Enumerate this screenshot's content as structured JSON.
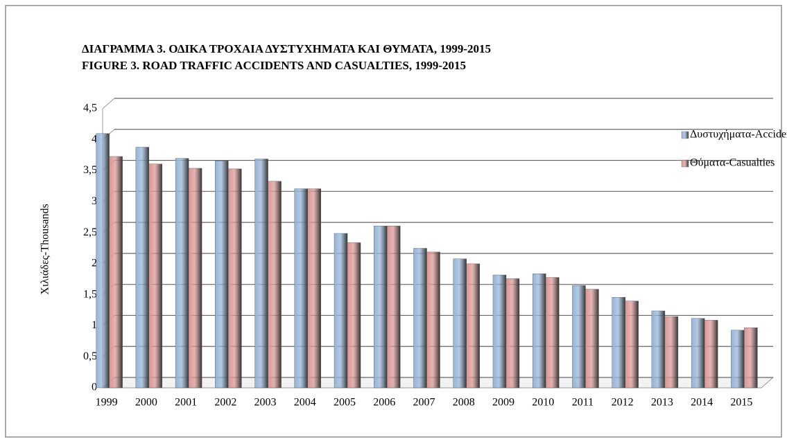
{
  "chart_data": {
    "type": "bar",
    "title": "ΔΙΑΓΡΑΜΜΑ 3. ΟΔΙΚΑ ΤΡΟΧΑΙΑ ΔΥΣΤΥΧΗΜΑΤΑ ΚΑΙ ΘΥΜΑΤΑ, 1999-2015",
    "subtitle": "FIGURE 3. ROAD TRAFFIC ACCIDENTS AND CASUALTIES, 1999-2015",
    "y_label": "Χιλιάδες-Thousands",
    "categories": [
      "1999",
      "2000",
      "2001",
      "2002",
      "2003",
      "2004",
      "2005",
      "2006",
      "2007",
      "2008",
      "2009",
      "2010",
      "2011",
      "2012",
      "2013",
      "2014",
      "2015"
    ],
    "series": [
      {
        "name": "Δυστυχήματα-Accidents",
        "color": "#95b3d7",
        "values": [
          4.1,
          3.88,
          3.7,
          3.66,
          3.69,
          3.21,
          2.49,
          2.61,
          2.25,
          2.08,
          1.82,
          1.84,
          1.65,
          1.46,
          1.24,
          1.12,
          0.93
        ]
      },
      {
        "name": "Θύματα-Casualties",
        "color": "#d99694",
        "values": [
          3.73,
          3.61,
          3.54,
          3.53,
          3.33,
          3.21,
          2.34,
          2.61,
          2.19,
          2.0,
          1.76,
          1.78,
          1.59,
          1.4,
          1.15,
          1.09,
          0.97
        ]
      }
    ],
    "ylim": [
      0,
      4.5
    ],
    "yticks": [
      0,
      {
        "value": 0.5,
        "label": "0,5"
      },
      1,
      {
        "value": 1.5,
        "label": "1,5"
      },
      2,
      {
        "value": 2.5,
        "label": "2,5"
      },
      3,
      {
        "value": 3.5,
        "label": "3,5"
      },
      4,
      {
        "value": 4.5,
        "label": "4,5"
      }
    ],
    "grid": true,
    "legend": "top-right"
  }
}
